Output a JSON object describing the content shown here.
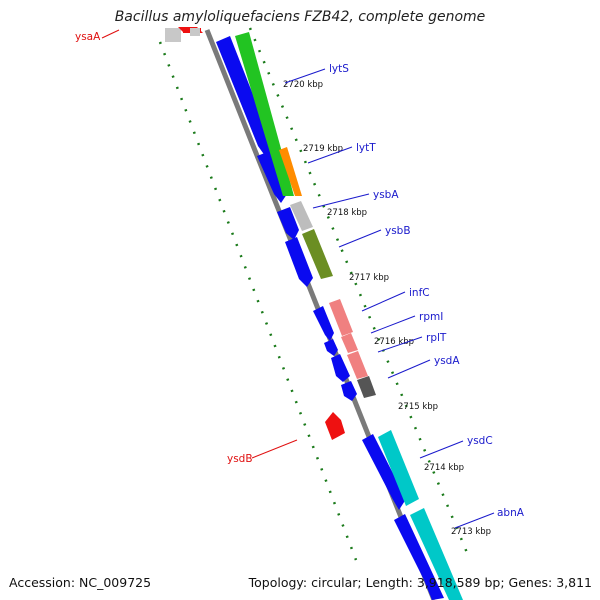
{
  "title": "Bacillus amyloliquefaciens FZB42, complete genome",
  "footer": {
    "accession": "Accession: NC_009725",
    "summary": "Topology: circular; Length: 3,918,589 bp; Genes: 3,811"
  },
  "colors": {
    "cds": "#0a0af0",
    "backbone": "#7a7a7a",
    "tick": "#1a7a1a",
    "label_forward": "#1a1acc",
    "label_reverse": "#e01010"
  },
  "ticks": [
    {
      "label": "2720 kbp"
    },
    {
      "label": "2719 kbp"
    },
    {
      "label": "2718 kbp"
    },
    {
      "label": "2717 kbp"
    },
    {
      "label": "2716 kbp"
    },
    {
      "label": "2715 kbp"
    },
    {
      "label": "2714 kbp"
    },
    {
      "label": "2713 kbp"
    }
  ],
  "genes": [
    {
      "name": "ysaA"
    },
    {
      "name": "lytS"
    },
    {
      "name": "lytT"
    },
    {
      "name": "ysbA"
    },
    {
      "name": "ysbB"
    },
    {
      "name": "infC"
    },
    {
      "name": "rpmI"
    },
    {
      "name": "rplT"
    },
    {
      "name": "ysdA"
    },
    {
      "name": "ysdB"
    },
    {
      "name": "ysdC"
    },
    {
      "name": "abnA"
    }
  ]
}
